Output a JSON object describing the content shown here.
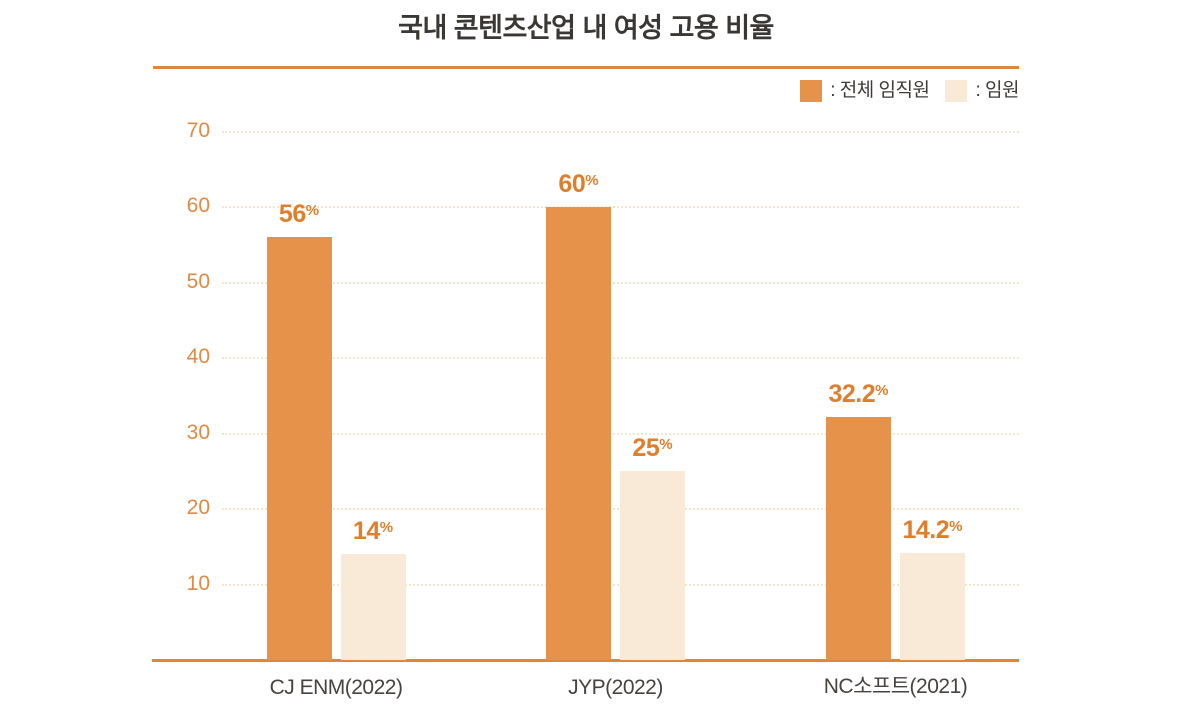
{
  "title": "국내 콘텐츠산업 내 여성 고용 비율",
  "percent_suffix": "%",
  "legend": {
    "items": [
      {
        "label": ": 전체 임직원",
        "series": "전체 임직원"
      },
      {
        "label": ": 임원",
        "series": "임원"
      }
    ]
  },
  "colors": {
    "accent_line": "#E08638",
    "bar_primary": "#E6924B",
    "bar_secondary": "#F9E9D7",
    "grid_line": "#F5E3CD",
    "tick_label": "#E18A41",
    "value_label": "#DF7F2B",
    "title_text": "#3A3734",
    "category_text": "#474340",
    "legend_text": "#3F3B38"
  },
  "chart_data": {
    "type": "bar",
    "title": "국내 콘텐츠산업 내 여성 고용 비율",
    "categories": [
      "CJ ENM(2022)",
      "JYP(2022)",
      "NC소프트(2021)"
    ],
    "series": [
      {
        "name": "전체 임직원",
        "values": [
          56,
          60,
          32.2
        ],
        "labels": [
          "56",
          "60",
          "32.2"
        ],
        "color_key": "bar_primary"
      },
      {
        "name": "임원",
        "values": [
          14,
          25,
          14.2
        ],
        "labels": [
          "14",
          "25",
          "14.2"
        ],
        "color_key": "bar_secondary"
      }
    ],
    "unit": "%",
    "yticks": [
      10,
      20,
      30,
      40,
      50,
      60,
      70
    ],
    "ylim": [
      0,
      70
    ],
    "grid": "horizontal-dotted",
    "legend_position": "top-right"
  }
}
